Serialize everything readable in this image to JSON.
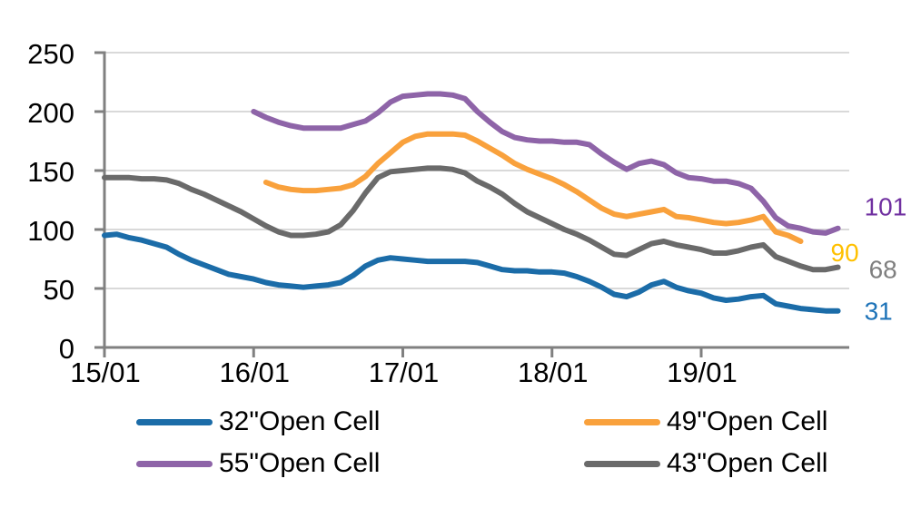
{
  "chart_data": {
    "type": "line",
    "title": "",
    "x_start": "2015-01",
    "x_end": "2019-12",
    "x_unit": "month",
    "x_tick_labels": [
      "15/01",
      "16/01",
      "17/01",
      "18/01",
      "19/01"
    ],
    "y_ticks": [
      0,
      50,
      100,
      150,
      200,
      250
    ],
    "ylim": [
      0,
      250
    ],
    "grid": "horizontal-only",
    "grid_color": "#d9d9d9",
    "axis_color": "#808080",
    "tick_label_color": "#000000",
    "legend_position": "bottom",
    "series": [
      {
        "name": "32\"Open Cell",
        "color": "#1b6ca8",
        "start": "2015-01",
        "start_index": 0,
        "end_label": "31",
        "end_label_color": "#1e73b8",
        "values": [
          95,
          96,
          93,
          91,
          88,
          85,
          79,
          74,
          70,
          66,
          62,
          60,
          58,
          55,
          53,
          52,
          51,
          52,
          53,
          55,
          61,
          69,
          74,
          76,
          75,
          74,
          73,
          73,
          73,
          73,
          72,
          69,
          66,
          65,
          65,
          64,
          64,
          63,
          60,
          56,
          51,
          45,
          43,
          47,
          53,
          56,
          51,
          48,
          46,
          42,
          40,
          41,
          43,
          44,
          37,
          35,
          33,
          32,
          31,
          31
        ]
      },
      {
        "name": "49\"Open Cell",
        "color": "#f9a13c",
        "start": "2016-02",
        "start_index": 13,
        "end_label": "90",
        "end_label_color": "#ffc000",
        "values": [
          140,
          136,
          134,
          133,
          133,
          134,
          135,
          138,
          145,
          156,
          165,
          174,
          179,
          181,
          181,
          181,
          180,
          175,
          169,
          163,
          156,
          151,
          147,
          143,
          138,
          132,
          125,
          118,
          113,
          111,
          113,
          115,
          117,
          111,
          110,
          108,
          106,
          105,
          106,
          108,
          111,
          98,
          95,
          90
        ]
      },
      {
        "name": "55\"Open Cell",
        "color": "#8e64a8",
        "start": "2016-01",
        "start_index": 12,
        "end_label": "101",
        "end_label_color": "#7030a0",
        "values": [
          200,
          195,
          191,
          188,
          186,
          186,
          186,
          186,
          189,
          192,
          199,
          208,
          213,
          214,
          215,
          215,
          214,
          211,
          200,
          191,
          183,
          178,
          176,
          175,
          175,
          174,
          174,
          172,
          164,
          157,
          151,
          156,
          158,
          155,
          148,
          144,
          143,
          141,
          141,
          139,
          135,
          124,
          110,
          103,
          101,
          98,
          97,
          101
        ]
      },
      {
        "name": "43\"Open Cell",
        "color": "#6a6a6a",
        "start": "2015-01",
        "start_index": 0,
        "end_label": "68",
        "end_label_color": "#7f7f7f",
        "values": [
          144,
          144,
          144,
          143,
          143,
          142,
          139,
          134,
          130,
          125,
          120,
          115,
          109,
          103,
          98,
          95,
          95,
          96,
          98,
          104,
          116,
          131,
          144,
          149,
          150,
          151,
          152,
          152,
          151,
          148,
          141,
          136,
          130,
          122,
          115,
          110,
          105,
          100,
          96,
          91,
          85,
          79,
          78,
          83,
          88,
          90,
          87,
          85,
          83,
          80,
          80,
          82,
          85,
          87,
          77,
          73,
          69,
          66,
          66,
          68
        ]
      }
    ]
  }
}
